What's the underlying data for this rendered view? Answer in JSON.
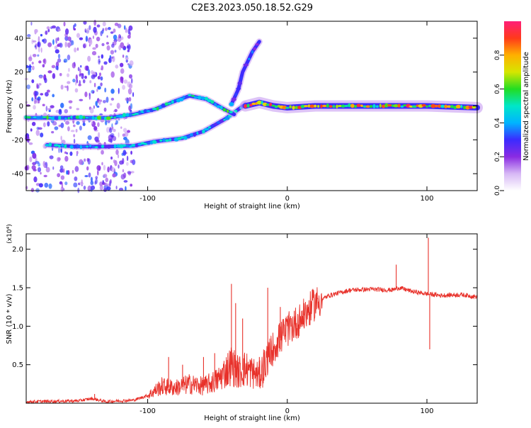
{
  "title": "C2E3.2023.050.18.52.G29",
  "chart_data": [
    {
      "type": "heatmap",
      "title": "C2E3.2023.050.18.52.G29",
      "xlabel": "Height of straight line (km)",
      "ylabel": "Frequency (Hz)",
      "xlim": [
        -187,
        136
      ],
      "ylim": [
        -50,
        50
      ],
      "xticks": [
        -100,
        0,
        100
      ],
      "yticks": [
        -40,
        -20,
        0,
        20,
        40
      ],
      "colorbar": {
        "label": "Normalized spectral amplitude",
        "range": [
          0,
          1
        ],
        "ticks": [
          0.0,
          0.2,
          0.4,
          0.6,
          0.8
        ],
        "tick_labels": [
          "0.0",
          "0.2",
          "0.4",
          "0.6",
          "0.8"
        ],
        "colors": [
          "#ffffff",
          "#d7b8f5",
          "#8a2be2",
          "#3b2bff",
          "#00b4ff",
          "#00e6c8",
          "#22dd22",
          "#d6e600",
          "#ffb000",
          "#ff3a1a",
          "#ff1e78"
        ]
      },
      "traces": [
        {
          "name": "lower-branch",
          "points": [
            [
              -172,
              -23
            ],
            [
              -150,
              -24
            ],
            [
              -130,
              -24
            ],
            [
              -110,
              -23.5
            ],
            [
              -95,
              -21
            ],
            [
              -75,
              -19
            ],
            [
              -60,
              -15
            ],
            [
              -45,
              -8
            ],
            [
              -35,
              -2
            ],
            [
              -30,
              1
            ]
          ],
          "amplitude": 0.45
        },
        {
          "name": "upper-branch",
          "points": [
            [
              -187,
              -7
            ],
            [
              -150,
              -7
            ],
            [
              -128,
              -7
            ],
            [
              -110,
              -5
            ],
            [
              -95,
              -2
            ],
            [
              -80,
              3
            ],
            [
              -70,
              6
            ],
            [
              -58,
              4
            ],
            [
              -45,
              -2
            ],
            [
              -38,
              -5
            ]
          ],
          "amplitude": 0.55
        },
        {
          "name": "steep-branch",
          "points": [
            [
              -40,
              1
            ],
            [
              -35,
              10
            ],
            [
              -32,
              20
            ],
            [
              -25,
              32
            ],
            [
              -20,
              38
            ]
          ],
          "amplitude": 0.35
        },
        {
          "name": "main-trace",
          "points": [
            [
              -30,
              0
            ],
            [
              -20,
              2
            ],
            [
              -10,
              0
            ],
            [
              0,
              -1
            ],
            [
              20,
              0
            ],
            [
              60,
              0
            ],
            [
              100,
              0
            ],
            [
              136,
              -1
            ]
          ],
          "amplitude": 0.85
        }
      ],
      "noise_band": {
        "x_range": [
          -187,
          -110
        ],
        "note": "scattered low-amplitude speckle"
      }
    },
    {
      "type": "line",
      "xlabel": "Height of straight line (km)",
      "ylabel": "SNR (10 * v/v)",
      "scale_label": "(x10⁴)",
      "xlim": [
        -187,
        136
      ],
      "ylim": [
        0,
        2.2
      ],
      "xticks": [
        -100,
        0,
        100
      ],
      "yticks": [
        0.5,
        1.0,
        1.5,
        2.0
      ],
      "ytick_labels": [
        "0.5",
        "1.0",
        "1.5",
        "2.0"
      ],
      "series": [
        {
          "name": "SNR",
          "color": "#e8312a",
          "envelope": [
            [
              -187,
              0.02
            ],
            [
              -150,
              0.03
            ],
            [
              -140,
              0.06
            ],
            [
              -130,
              0.02
            ],
            [
              -110,
              0.04
            ],
            [
              -100,
              0.1
            ],
            [
              -90,
              0.22
            ],
            [
              -80,
              0.2
            ],
            [
              -70,
              0.25
            ],
            [
              -60,
              0.22
            ],
            [
              -50,
              0.3
            ],
            [
              -40,
              0.5
            ],
            [
              -35,
              0.4
            ],
            [
              -30,
              0.45
            ],
            [
              -20,
              0.35
            ],
            [
              -15,
              0.55
            ],
            [
              -10,
              0.72
            ],
            [
              -5,
              0.85
            ],
            [
              0,
              0.95
            ],
            [
              10,
              1.1
            ],
            [
              20,
              1.3
            ],
            [
              30,
              1.4
            ],
            [
              45,
              1.47
            ],
            [
              60,
              1.48
            ],
            [
              75,
              1.47
            ],
            [
              80,
              1.5
            ],
            [
              90,
              1.45
            ],
            [
              100,
              1.42
            ],
            [
              110,
              1.4
            ],
            [
              125,
              1.41
            ],
            [
              136,
              1.38
            ]
          ],
          "spikes": [
            [
              -138,
              0.12
            ],
            [
              -85,
              0.6
            ],
            [
              -75,
              0.5
            ],
            [
              -60,
              0.6
            ],
            [
              -52,
              0.65
            ],
            [
              -40,
              1.55
            ],
            [
              -37,
              1.3
            ],
            [
              -32,
              1.1
            ],
            [
              -20,
              0.6
            ],
            [
              -14,
              1.5
            ],
            [
              -5,
              1.25
            ],
            [
              5,
              1.2
            ],
            [
              12,
              1.3
            ],
            [
              78,
              1.8
            ],
            [
              101,
              2.15
            ],
            [
              102,
              0.7
            ]
          ]
        }
      ]
    }
  ]
}
